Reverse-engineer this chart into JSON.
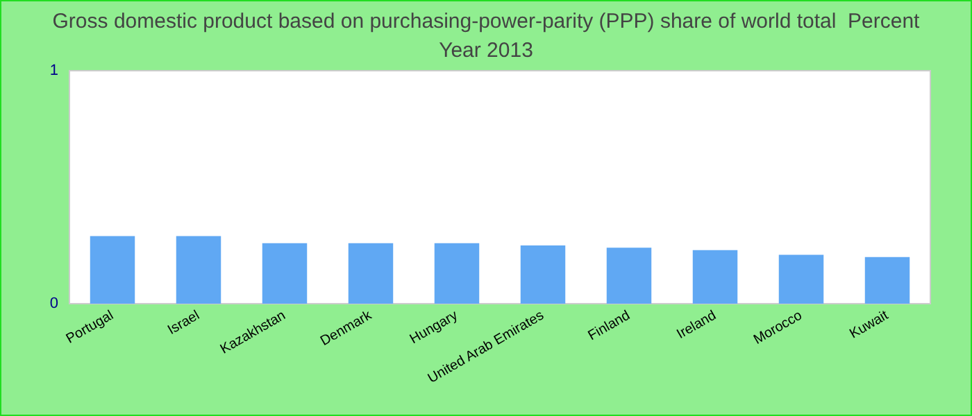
{
  "chart_data": {
    "type": "bar",
    "title": "Gross domestic product based on purchasing-power-parity (PPP) share of world total  Percent",
    "subtitle": "Year 2013",
    "categories": [
      "Portugal",
      "Israel",
      "Kazakhstan",
      "Denmark",
      "Hungary",
      "United Arab Emirates",
      "Finland",
      "Ireland",
      "Morocco",
      "Kuwait"
    ],
    "values": [
      0.29,
      0.29,
      0.26,
      0.26,
      0.26,
      0.25,
      0.24,
      0.23,
      0.21,
      0.2
    ],
    "color": "#60a8f3",
    "ylim": [
      0,
      1
    ],
    "yticks": [
      0,
      1
    ]
  }
}
